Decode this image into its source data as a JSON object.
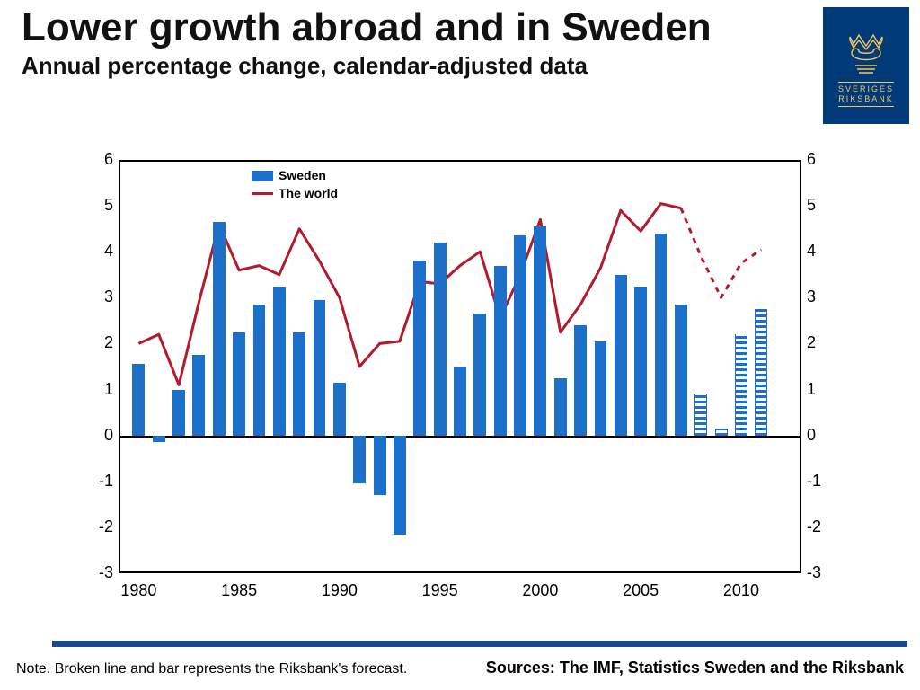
{
  "header": {
    "title": "Lower growth abroad and in Sweden",
    "subtitle": "Annual percentage change, calendar-adjusted data",
    "logo_text_top": "SVERIGES",
    "logo_text_bottom": "RIKSBANK"
  },
  "colors": {
    "bar": "#1d70c9",
    "line": "#b01c2e",
    "rule": "#174a8b",
    "axis": "#000000",
    "logo_bg": "#003a78",
    "logo_fg": "#f2c75c"
  },
  "chart": {
    "type": "bar+line",
    "ylim": [
      -3,
      6
    ],
    "ytick_step": 1,
    "xlim": [
      1979,
      2013
    ],
    "xticks": [
      1980,
      1985,
      1990,
      1995,
      2000,
      2005,
      2010
    ],
    "bar_width_years": 0.62,
    "line_width": 3,
    "line_dash": "6,6",
    "legend": {
      "series1": "Sweden",
      "series2": "The world"
    },
    "bars": [
      {
        "year": 1980,
        "value": 1.55,
        "forecast": false
      },
      {
        "year": 1981,
        "value": -0.15,
        "forecast": false
      },
      {
        "year": 1982,
        "value": 1.0,
        "forecast": false
      },
      {
        "year": 1983,
        "value": 1.75,
        "forecast": false
      },
      {
        "year": 1984,
        "value": 4.65,
        "forecast": false
      },
      {
        "year": 1985,
        "value": 2.25,
        "forecast": false
      },
      {
        "year": 1986,
        "value": 2.85,
        "forecast": false
      },
      {
        "year": 1987,
        "value": 3.25,
        "forecast": false
      },
      {
        "year": 1988,
        "value": 2.25,
        "forecast": false
      },
      {
        "year": 1989,
        "value": 2.95,
        "forecast": false
      },
      {
        "year": 1990,
        "value": 1.15,
        "forecast": false
      },
      {
        "year": 1991,
        "value": -1.05,
        "forecast": false
      },
      {
        "year": 1992,
        "value": -1.3,
        "forecast": false
      },
      {
        "year": 1993,
        "value": -2.15,
        "forecast": false
      },
      {
        "year": 1994,
        "value": 3.8,
        "forecast": false
      },
      {
        "year": 1995,
        "value": 4.2,
        "forecast": false
      },
      {
        "year": 1996,
        "value": 1.5,
        "forecast": false
      },
      {
        "year": 1997,
        "value": 2.65,
        "forecast": false
      },
      {
        "year": 1998,
        "value": 3.7,
        "forecast": false
      },
      {
        "year": 1999,
        "value": 4.35,
        "forecast": false
      },
      {
        "year": 2000,
        "value": 4.55,
        "forecast": false
      },
      {
        "year": 2001,
        "value": 1.25,
        "forecast": false
      },
      {
        "year": 2002,
        "value": 2.4,
        "forecast": false
      },
      {
        "year": 2003,
        "value": 2.05,
        "forecast": false
      },
      {
        "year": 2004,
        "value": 3.5,
        "forecast": false
      },
      {
        "year": 2005,
        "value": 3.25,
        "forecast": false
      },
      {
        "year": 2006,
        "value": 4.4,
        "forecast": false
      },
      {
        "year": 2007,
        "value": 2.85,
        "forecast": false
      },
      {
        "year": 2008,
        "value": 0.9,
        "forecast": true
      },
      {
        "year": 2009,
        "value": 0.15,
        "forecast": true
      },
      {
        "year": 2010,
        "value": 2.2,
        "forecast": true
      },
      {
        "year": 2011,
        "value": 2.75,
        "forecast": true
      }
    ],
    "line_solid": [
      {
        "year": 1980,
        "value": 2.0
      },
      {
        "year": 1981,
        "value": 2.2
      },
      {
        "year": 1982,
        "value": 1.1
      },
      {
        "year": 1983,
        "value": 2.9
      },
      {
        "year": 1984,
        "value": 4.6
      },
      {
        "year": 1985,
        "value": 3.6
      },
      {
        "year": 1986,
        "value": 3.7
      },
      {
        "year": 1987,
        "value": 3.5
      },
      {
        "year": 1988,
        "value": 4.5
      },
      {
        "year": 1989,
        "value": 3.8
      },
      {
        "year": 1990,
        "value": 3.0
      },
      {
        "year": 1991,
        "value": 1.5
      },
      {
        "year": 1992,
        "value": 2.0
      },
      {
        "year": 1993,
        "value": 2.05
      },
      {
        "year": 1994,
        "value": 3.35
      },
      {
        "year": 1995,
        "value": 3.3
      },
      {
        "year": 1996,
        "value": 3.7
      },
      {
        "year": 1997,
        "value": 4.0
      },
      {
        "year": 1998,
        "value": 2.55
      },
      {
        "year": 1999,
        "value": 3.5
      },
      {
        "year": 2000,
        "value": 4.7
      },
      {
        "year": 2001,
        "value": 2.25
      },
      {
        "year": 2002,
        "value": 2.85
      },
      {
        "year": 2003,
        "value": 3.65
      },
      {
        "year": 2004,
        "value": 4.9
      },
      {
        "year": 2005,
        "value": 4.45
      },
      {
        "year": 2006,
        "value": 5.05
      },
      {
        "year": 2007,
        "value": 4.95
      }
    ],
    "line_dashed": [
      {
        "year": 2007,
        "value": 4.95
      },
      {
        "year": 2008,
        "value": 3.9
      },
      {
        "year": 2009,
        "value": 3.0
      },
      {
        "year": 2010,
        "value": 3.75
      },
      {
        "year": 2011,
        "value": 4.05
      }
    ]
  },
  "footer": {
    "note": "Note. Broken line and bar represents the Riksbank's forecast.",
    "sources": "Sources: The IMF, Statistics Sweden and the Riksbank"
  }
}
